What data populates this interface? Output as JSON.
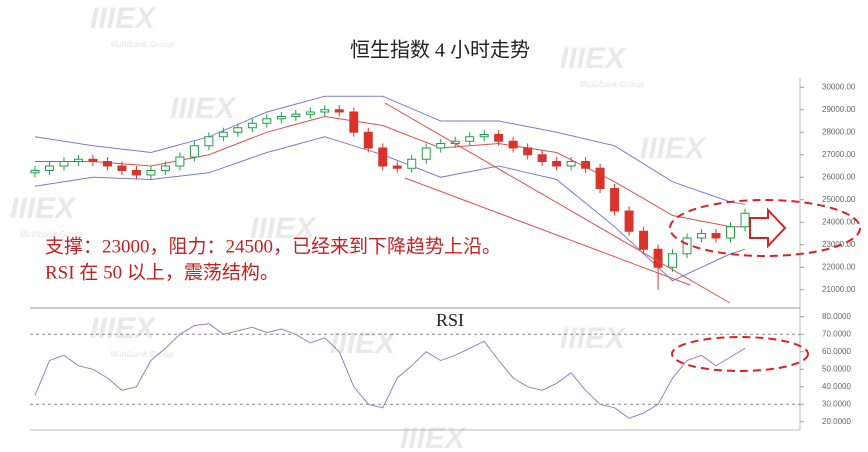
{
  "watermark": {
    "logo": "IIIEX",
    "group": "Multibank Group"
  },
  "chart_data": [
    {
      "type": "candlestick",
      "title": "恒生指数 4 小时走势",
      "annotations": [
        "支撑：23000，阻力：24500，已经来到下降趋势上沿。",
        "RSI 在 50 以上，震荡结构。"
      ],
      "up_color": "#1f9e4a",
      "down_color": "#d9342b",
      "open": [
        26200,
        26300,
        26500,
        26700,
        26800,
        26700,
        26500,
        26300,
        26100,
        26300,
        26500,
        26900,
        27400,
        27800,
        28000,
        28200,
        28400,
        28600,
        28700,
        28800,
        28900,
        29000,
        28900,
        28000,
        27300,
        26500,
        26400,
        26800,
        27300,
        27500,
        27600,
        27800,
        27900,
        27600,
        27300,
        27000,
        26700,
        26500,
        26700,
        26400,
        25500,
        24500,
        23600,
        22800,
        22000,
        22600,
        23300,
        23500,
        23300,
        23800
      ],
      "high": [
        26500,
        26700,
        26900,
        27000,
        27000,
        26900,
        26700,
        26500,
        26500,
        26700,
        27100,
        27600,
        28000,
        28200,
        28400,
        28600,
        28800,
        28900,
        29000,
        29100,
        29200,
        29200,
        29100,
        28200,
        27500,
        26700,
        27000,
        27500,
        27700,
        27800,
        28000,
        28100,
        28100,
        27800,
        27500,
        27200,
        26900,
        26900,
        26900,
        26600,
        25700,
        24700,
        23800,
        23000,
        22800,
        23500,
        23700,
        23700,
        24000,
        24600
      ],
      "low": [
        26000,
        26100,
        26300,
        26500,
        26500,
        26300,
        26100,
        25900,
        25900,
        26100,
        26300,
        26700,
        27200,
        27600,
        27800,
        28000,
        28200,
        28400,
        28500,
        28600,
        28700,
        28700,
        27800,
        27100,
        26300,
        26200,
        26200,
        26600,
        27100,
        27300,
        27400,
        27600,
        27400,
        27100,
        26800,
        26500,
        26300,
        26300,
        26200,
        25300,
        24300,
        23400,
        22600,
        21000,
        21800,
        22400,
        23100,
        23100,
        23100,
        23600
      ],
      "close": [
        26300,
        26500,
        26700,
        26800,
        26700,
        26500,
        26300,
        26100,
        26300,
        26500,
        26900,
        27400,
        27800,
        28000,
        28200,
        28400,
        28600,
        28700,
        28800,
        28900,
        29000,
        28900,
        28000,
        27300,
        26500,
        26400,
        26800,
        27300,
        27500,
        27600,
        27800,
        27900,
        27600,
        27300,
        27000,
        26700,
        26500,
        26700,
        26400,
        25500,
        24500,
        23600,
        22800,
        22000,
        22600,
        23300,
        23500,
        23300,
        23800,
        24400
      ],
      "series": [
        {
          "color": "#7b7bd6",
          "values": [
            27800,
            27700,
            27600,
            27500,
            27400,
            27325,
            27250,
            27175,
            27100,
            27275,
            27450,
            27625,
            27800,
            28075,
            28350,
            28625,
            28900,
            29075,
            29250,
            29425,
            29600,
            29600,
            29600,
            29600,
            29600,
            29325,
            29050,
            28775,
            28500,
            28500,
            28500,
            28500,
            28500,
            28375,
            28250,
            28125,
            28000,
            27850,
            27700,
            27550,
            27400,
            27000,
            26600,
            26200,
            25800,
            25575,
            25350,
            25125,
            24900,
            24800
          ]
        },
        {
          "color": "#e0504a",
          "values": [
            26700,
            26700,
            26700,
            26700,
            26700,
            26650,
            26600,
            26550,
            26500,
            26625,
            26750,
            26875,
            27000,
            27250,
            27500,
            27750,
            28000,
            28175,
            28350,
            28525,
            28700,
            28600,
            28500,
            28400,
            28300,
            28050,
            27800,
            27550,
            27300,
            27350,
            27400,
            27450,
            27500,
            27400,
            27300,
            27200,
            27100,
            26775,
            26450,
            26125,
            25800,
            25425,
            25050,
            24675,
            24300,
            24175,
            24050,
            23925,
            23800,
            23800
          ]
        },
        {
          "color": "#7b7bd6",
          "values": [
            25600,
            25700,
            25800,
            25900,
            26000,
            25975,
            25950,
            25925,
            25900,
            25975,
            26050,
            26125,
            26200,
            26425,
            26650,
            26875,
            27100,
            27275,
            27450,
            27625,
            27800,
            27600,
            27400,
            27200,
            27000,
            26750,
            26500,
            26250,
            26000,
            26125,
            26250,
            26375,
            26500,
            26350,
            26200,
            26050,
            25900,
            25375,
            24850,
            24325,
            23800,
            23200,
            22600,
            22000,
            21400,
            21700,
            22000,
            22300,
            22600,
            22800
          ]
        }
      ],
      "ylim": [
        20500,
        30500
      ],
      "yticks": [
        {
          "value": 30000,
          "label": "30000.00"
        },
        {
          "value": 29000,
          "label": "29000.00"
        },
        {
          "value": 28000,
          "label": "28000.00"
        },
        {
          "value": 27000,
          "label": "27000.00"
        },
        {
          "value": 26000,
          "label": "26000.00"
        },
        {
          "value": 25000,
          "label": "25000.00"
        },
        {
          "value": 24000,
          "label": "24000.00"
        },
        {
          "value": 23000,
          "label": "23000.00"
        },
        {
          "value": 22000,
          "label": "22000.00"
        },
        {
          "value": 21000,
          "label": "21000.00"
        }
      ]
    },
    {
      "type": "line",
      "title": "RSI",
      "color": "#a07cc0",
      "values": [
        35,
        55,
        58,
        52,
        50,
        45,
        38,
        40,
        55,
        62,
        70,
        75,
        76,
        70,
        72,
        74,
        71,
        73,
        70,
        65,
        68,
        60,
        40,
        30,
        28,
        45,
        52,
        60,
        55,
        58,
        62,
        66,
        55,
        45,
        40,
        38,
        42,
        48,
        38,
        30,
        28,
        22,
        25,
        30,
        45,
        55,
        58,
        52,
        57,
        62
      ],
      "ref_lines": [
        70,
        30
      ],
      "ylim": [
        15,
        85
      ],
      "yticks": [
        {
          "value": 80,
          "label": "80.0000"
        },
        {
          "value": 70,
          "label": "70.0000"
        },
        {
          "value": 60,
          "label": "60.0000"
        },
        {
          "value": 50,
          "label": "50.0000"
        },
        {
          "value": 40,
          "label": "40.0000"
        },
        {
          "value": 30,
          "label": "30.0000"
        },
        {
          "value": 20,
          "label": "20.0000"
        }
      ]
    }
  ]
}
